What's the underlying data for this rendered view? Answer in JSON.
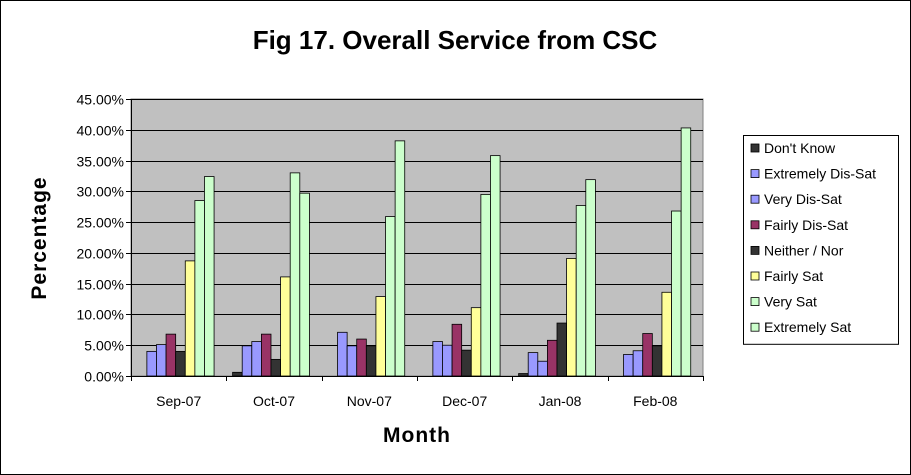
{
  "chart_data": {
    "type": "bar",
    "title": "Fig 17. Overall Service from CSC",
    "xlabel": "Month",
    "ylabel": "Percentage",
    "ylim": [
      0,
      0.45
    ],
    "ytick_step": 0.05,
    "ytick_labels": [
      "0.00%",
      "5.00%",
      "10.00%",
      "15.00%",
      "20.00%",
      "25.00%",
      "30.00%",
      "35.00%",
      "40.00%",
      "45.00%"
    ],
    "grid": "horizontal",
    "legend_position": "right",
    "categories": [
      "Sep-07",
      "Oct-07",
      "Nov-07",
      "Dec-07",
      "Jan-08",
      "Feb-08"
    ],
    "series": [
      {
        "name": "Don't Know",
        "color": "#333333",
        "values": [
          0.0,
          0.006,
          0.0,
          0.0,
          0.004,
          0.0
        ]
      },
      {
        "name": "Extremely Dis-Sat",
        "color": "#9999ff",
        "values": [
          0.04,
          0.049,
          0.071,
          0.056,
          0.038,
          0.035
        ]
      },
      {
        "name": "Very Dis-Sat",
        "color": "#9999ff",
        "values": [
          0.051,
          0.056,
          0.049,
          0.05,
          0.024,
          0.041
        ]
      },
      {
        "name": "Fairly Dis-Sat",
        "color": "#993366",
        "values": [
          0.068,
          0.068,
          0.06,
          0.084,
          0.058,
          0.069
        ]
      },
      {
        "name": "Neither / Nor",
        "color": "#333333",
        "values": [
          0.04,
          0.027,
          0.049,
          0.042,
          0.086,
          0.049
        ]
      },
      {
        "name": "Fairly Sat",
        "color": "#ffff99",
        "values": [
          0.187,
          0.161,
          0.129,
          0.111,
          0.191,
          0.136
        ]
      },
      {
        "name": "Very Sat",
        "color": "#ccffcc",
        "values": [
          0.285,
          0.33,
          0.259,
          0.295,
          0.277,
          0.268
        ]
      },
      {
        "name": "Extremely Sat",
        "color": "#ccffcc",
        "values": [
          0.324,
          0.297,
          0.382,
          0.358,
          0.319,
          0.403
        ]
      }
    ],
    "plot_background": "#c0c0c0"
  }
}
